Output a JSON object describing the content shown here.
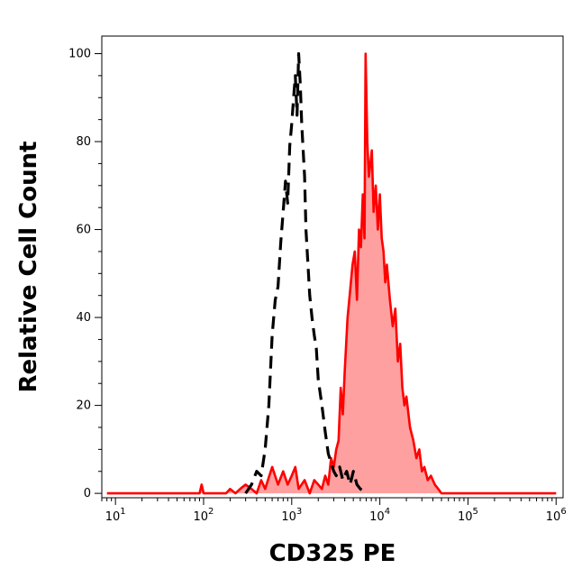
{
  "chart_data": {
    "type": "area",
    "xlabel": "CD325 PE",
    "ylabel": "Relative Cell Count",
    "x_scale": "log",
    "xlim": [
      7,
      1200000
    ],
    "ylim": [
      -1,
      104
    ],
    "grid": false,
    "x_ticks": [
      {
        "value": 10,
        "base": "10",
        "exp": "1"
      },
      {
        "value": 100,
        "base": "10",
        "exp": "2"
      },
      {
        "value": 1000,
        "base": "10",
        "exp": "3"
      },
      {
        "value": 10000,
        "base": "10",
        "exp": "4"
      },
      {
        "value": 100000,
        "base": "10",
        "exp": "5"
      },
      {
        "value": 1000000,
        "base": "10",
        "exp": "6"
      }
    ],
    "y_ticks": [
      {
        "value": 0,
        "label": "0"
      },
      {
        "value": 20,
        "label": "20"
      },
      {
        "value": 40,
        "label": "40"
      },
      {
        "value": 60,
        "label": "60"
      },
      {
        "value": 80,
        "label": "80"
      },
      {
        "value": 100,
        "label": "100"
      }
    ],
    "series": [
      {
        "style": "dashed",
        "fill": false,
        "color": "#000000",
        "x": [
          300,
          350,
          400,
          450,
          500,
          550,
          600,
          650,
          700,
          750,
          800,
          850,
          900,
          950,
          1000,
          1050,
          1100,
          1150,
          1200,
          1250,
          1300,
          1350,
          1400,
          1450,
          1500,
          1600,
          1700,
          1800,
          1900,
          2000,
          2200,
          2400,
          2600,
          2800,
          3000,
          3200,
          3500,
          3800,
          4200,
          4600,
          5000,
          5500,
          6000,
          7000
        ],
        "y": [
          0,
          2,
          5,
          4,
          10,
          20,
          36,
          44,
          47,
          57,
          64,
          71,
          66,
          79,
          84,
          90,
          95,
          86,
          100,
          93,
          84,
          78,
          72,
          60,
          55,
          45,
          40,
          36,
          33,
          26,
          20,
          14,
          9,
          7,
          5,
          4,
          6,
          3,
          5,
          2,
          5,
          2,
          1,
          0
        ]
      },
      {
        "style": "solid",
        "fill": true,
        "color": "#ff0000",
        "fill_color": "#ffa0a0",
        "x": [
          8,
          50,
          90,
          95,
          100,
          130,
          180,
          200,
          230,
          260,
          300,
          350,
          400,
          450,
          500,
          600,
          700,
          800,
          900,
          1000,
          1100,
          1200,
          1400,
          1600,
          1800,
          2000,
          2200,
          2400,
          2600,
          2800,
          3000,
          3200,
          3400,
          3600,
          3800,
          4000,
          4300,
          4600,
          4900,
          5200,
          5500,
          5800,
          6100,
          6400,
          6700,
          6900,
          7200,
          7500,
          7800,
          8100,
          8500,
          9000,
          9500,
          10000,
          10500,
          11000,
          11500,
          12000,
          13000,
          14000,
          15000,
          16000,
          17000,
          18000,
          19000,
          20000,
          22000,
          24000,
          26000,
          28000,
          30000,
          32000,
          35000,
          38000,
          42000,
          46000,
          50000,
          60000,
          80000,
          100000,
          200000,
          500000,
          1000000
        ],
        "y": [
          0,
          0,
          0,
          2,
          0,
          0,
          0,
          1,
          0,
          1,
          2,
          1,
          0,
          3,
          1,
          6,
          2,
          5,
          2,
          4,
          6,
          1,
          3,
          0,
          3,
          2,
          1,
          4,
          2,
          8,
          6,
          10,
          12,
          24,
          18,
          28,
          40,
          46,
          52,
          55,
          44,
          60,
          56,
          68,
          58,
          100,
          80,
          72,
          75,
          78,
          64,
          70,
          60,
          68,
          58,
          55,
          48,
          52,
          44,
          38,
          42,
          30,
          34,
          24,
          20,
          22,
          15,
          12,
          8,
          10,
          5,
          6,
          3,
          4,
          2,
          1,
          0,
          0,
          0,
          0,
          0,
          0,
          0
        ]
      }
    ]
  }
}
